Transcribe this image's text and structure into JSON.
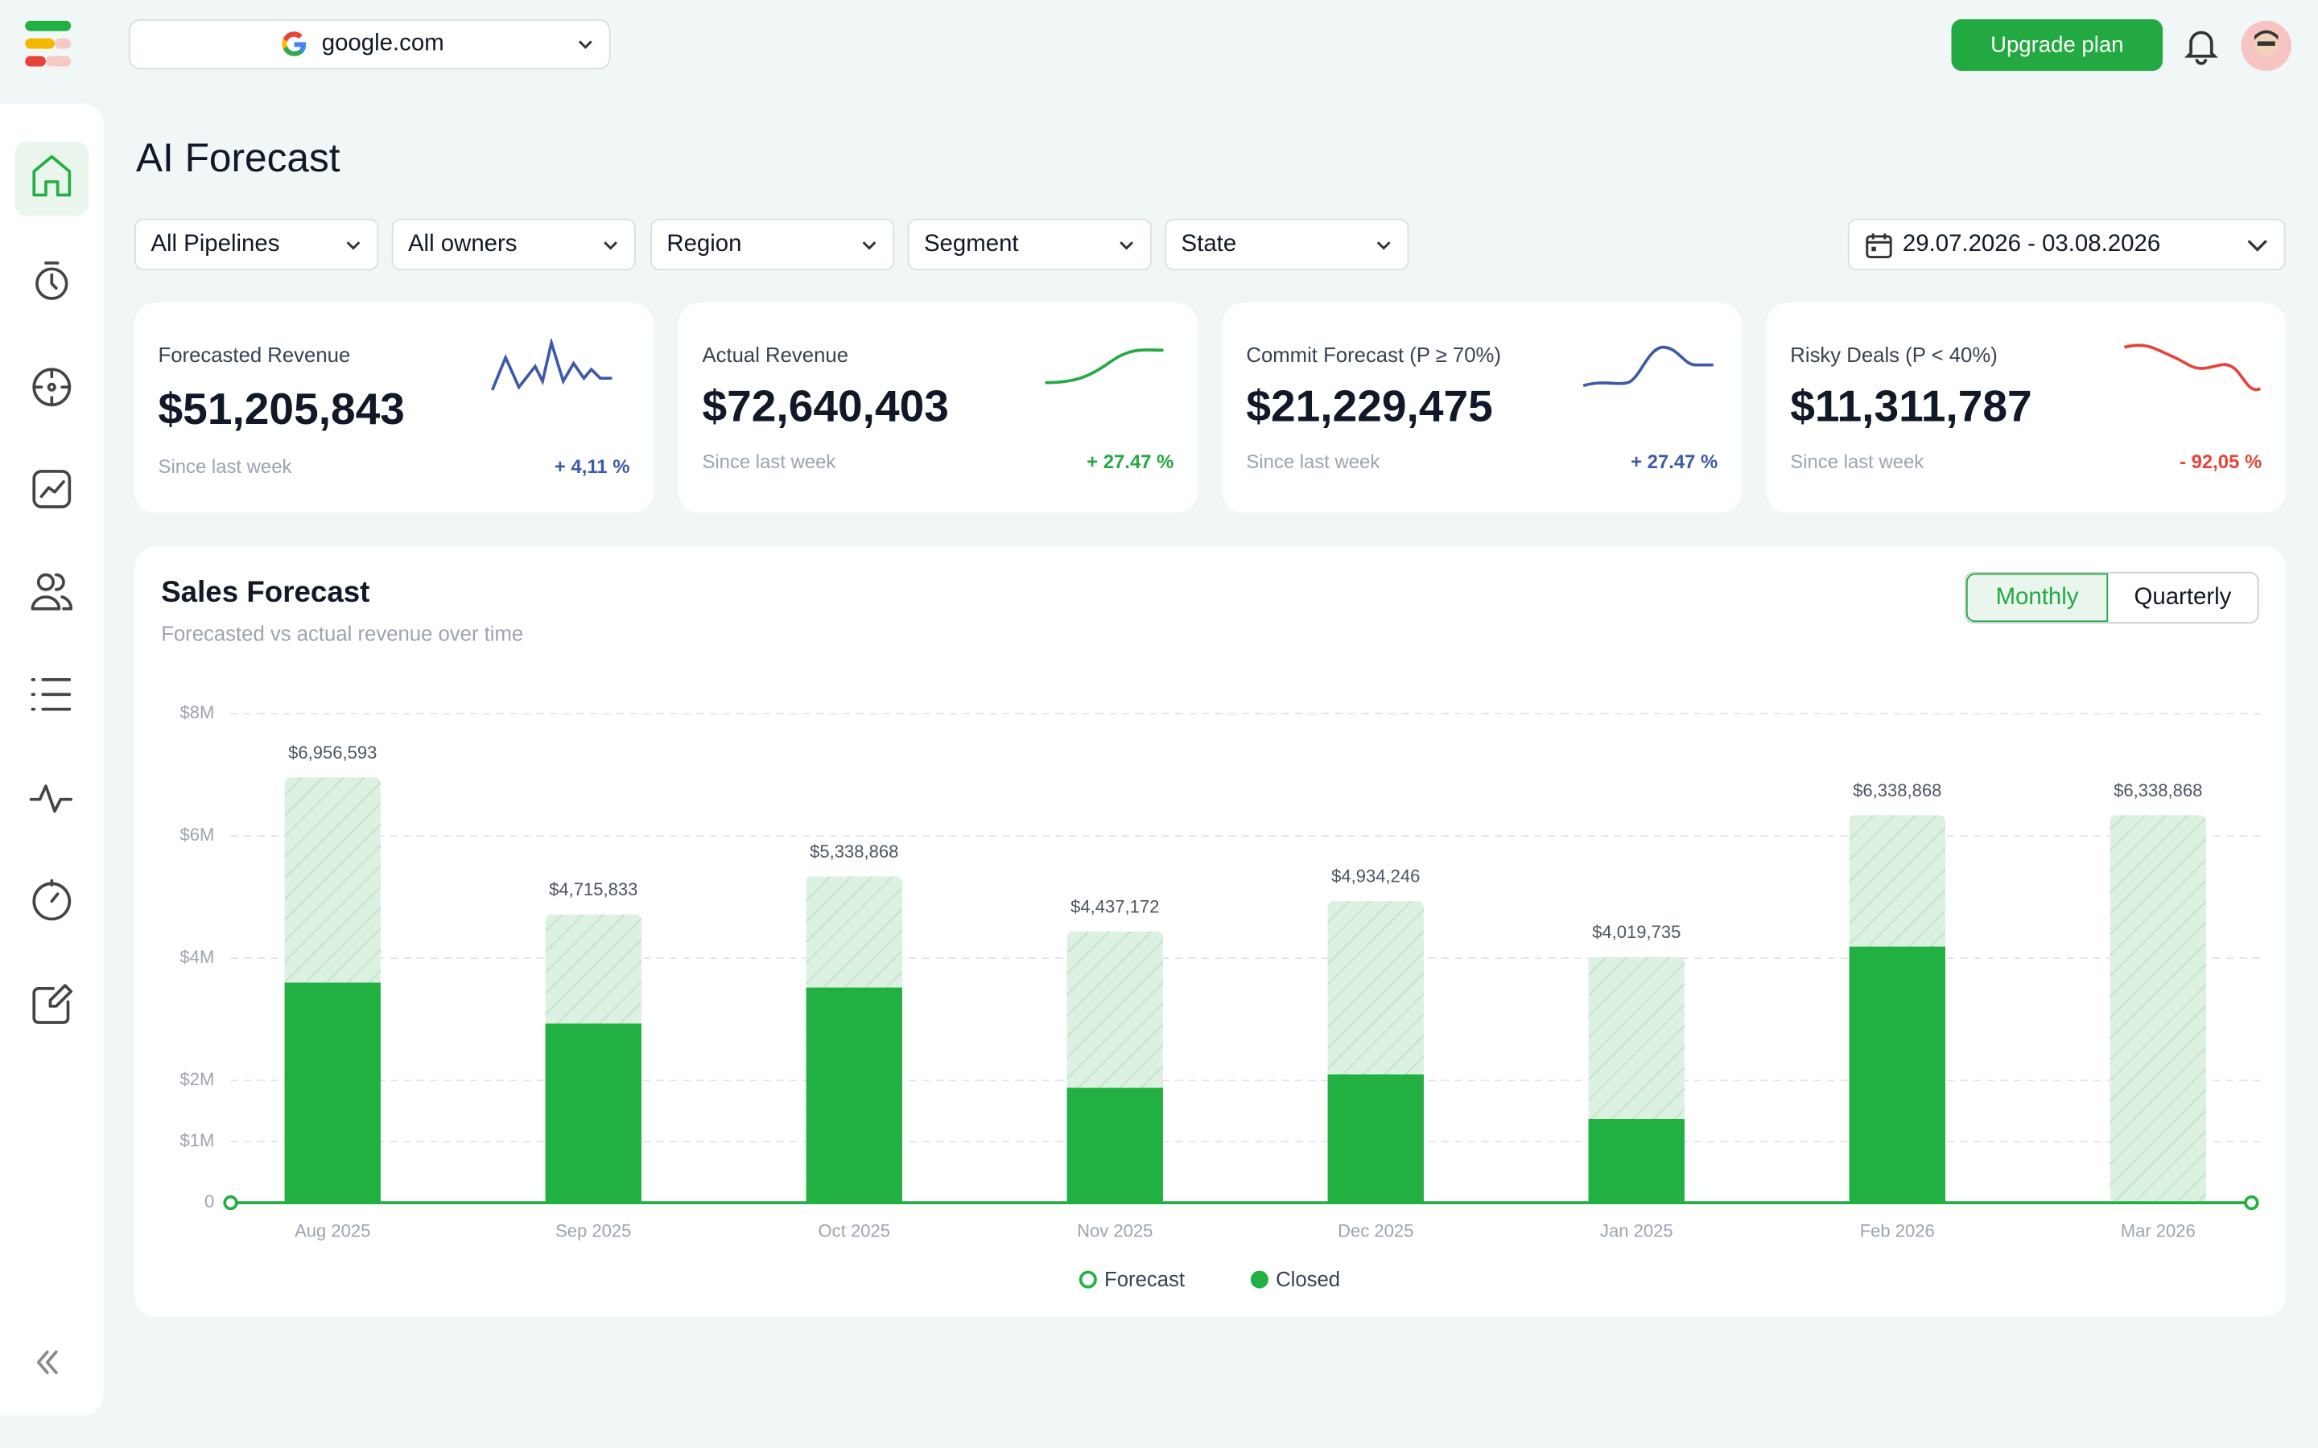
{
  "header": {
    "domain": "google.com",
    "upgrade": "Upgrade plan"
  },
  "page_title": "AI Forecast",
  "filters": [
    "All Pipelines",
    "All owners",
    "Region",
    "Segment",
    "State"
  ],
  "date_range": "29.07.2026 - 03.08.2026",
  "kpis": [
    {
      "label": "Forecasted Revenue",
      "value": "$51,205,843",
      "since": "Since last week",
      "change": "+ 4,11 %"
    },
    {
      "label": "Actual Revenue",
      "value": "$72,640,403",
      "since": "Since last week",
      "change": "+ 27.47 %"
    },
    {
      "label": "Commit Forecast (P ≥ 70%)",
      "value": "$21,229,475",
      "since": "Since last week",
      "change": "+ 27.47 %"
    },
    {
      "label": "Risky Deals (P < 40%)",
      "value": "$11,311,787",
      "since": "Since last week",
      "change": "- 92,05 %"
    }
  ],
  "period_toggle": [
    "Monthly",
    "Quarterly"
  ],
  "chart_data": {
    "type": "bar",
    "title": "Sales Forecast",
    "subtitle": "Forecasted vs actual revenue over time",
    "categories": [
      "Aug 2025",
      "Sep 2025",
      "Oct 2025",
      "Nov 2025",
      "Dec 2025",
      "Jan 2025",
      "Feb 2026",
      "Mar 2026"
    ],
    "series": [
      {
        "name": "Forecast",
        "color": "#dcf1e1",
        "values": [
          6956593,
          4715833,
          5338868,
          4437172,
          4934246,
          4019735,
          6338868,
          6338868
        ],
        "value_labels": [
          "$6,956,593",
          "$4,715,833",
          "$5,338,868",
          "$4,437,172",
          "$4,934,246",
          "$4,019,735",
          "$6,338,868",
          "$6,338,868"
        ]
      },
      {
        "name": "Closed",
        "color": "#22b043",
        "values": [
          3600000,
          2930000,
          3520000,
          1880000,
          2100000,
          1370000,
          4190000,
          0
        ]
      }
    ],
    "ylim": [
      0,
      8000000
    ],
    "yticks": [
      0,
      {
        "value": 1000000,
        "label": "$1M"
      },
      {
        "value": 2000000,
        "label": "$2M"
      },
      {
        "value": 4000000,
        "label": "$4M"
      },
      {
        "value": 6000000,
        "label": "$6M"
      },
      {
        "value": 8000000,
        "label": "$8M"
      }
    ],
    "grid": true
  }
}
